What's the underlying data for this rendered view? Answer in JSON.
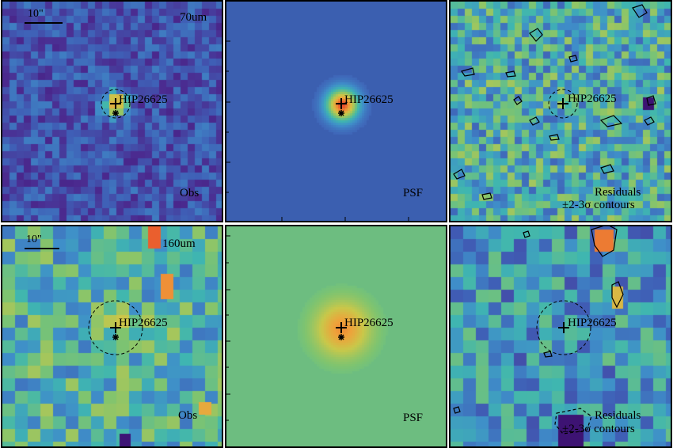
{
  "target_name": "HIP26625",
  "scale_bar_label": "10\"",
  "rows": [
    {
      "band": "70um",
      "panels": [
        {
          "id": "obs70",
          "kind": "obs",
          "label": "Obs"
        },
        {
          "id": "psf70",
          "kind": "psf",
          "label": "PSF",
          "axis_ticks": [
            "30",
            "20",
            "10"
          ]
        },
        {
          "id": "res70",
          "kind": "residual",
          "label_line1": "Residuals",
          "label_line2": "±2-3σ contours"
        }
      ]
    },
    {
      "band": "160um",
      "panels": [
        {
          "id": "obs160",
          "kind": "obs",
          "label": "Obs"
        },
        {
          "id": "psf160",
          "kind": "psf",
          "label": "PSF",
          "axis_ticks": [
            "20",
            "15",
            "10"
          ]
        },
        {
          "id": "res160",
          "kind": "residual",
          "label_line1": "Residuals",
          "label_line2": "±2-3σ contours"
        }
      ]
    }
  ],
  "colors": {
    "frame": "#000000",
    "psf70_background": "#3b5fb0",
    "psf160_background": "#6dbd80",
    "colormap": [
      "#3a0f6e",
      "#4b2a8f",
      "#3f5fb6",
      "#3f8fc9",
      "#3fb6b0",
      "#7fc46f",
      "#c9c84a",
      "#efa13a",
      "#e94a2a"
    ]
  }
}
